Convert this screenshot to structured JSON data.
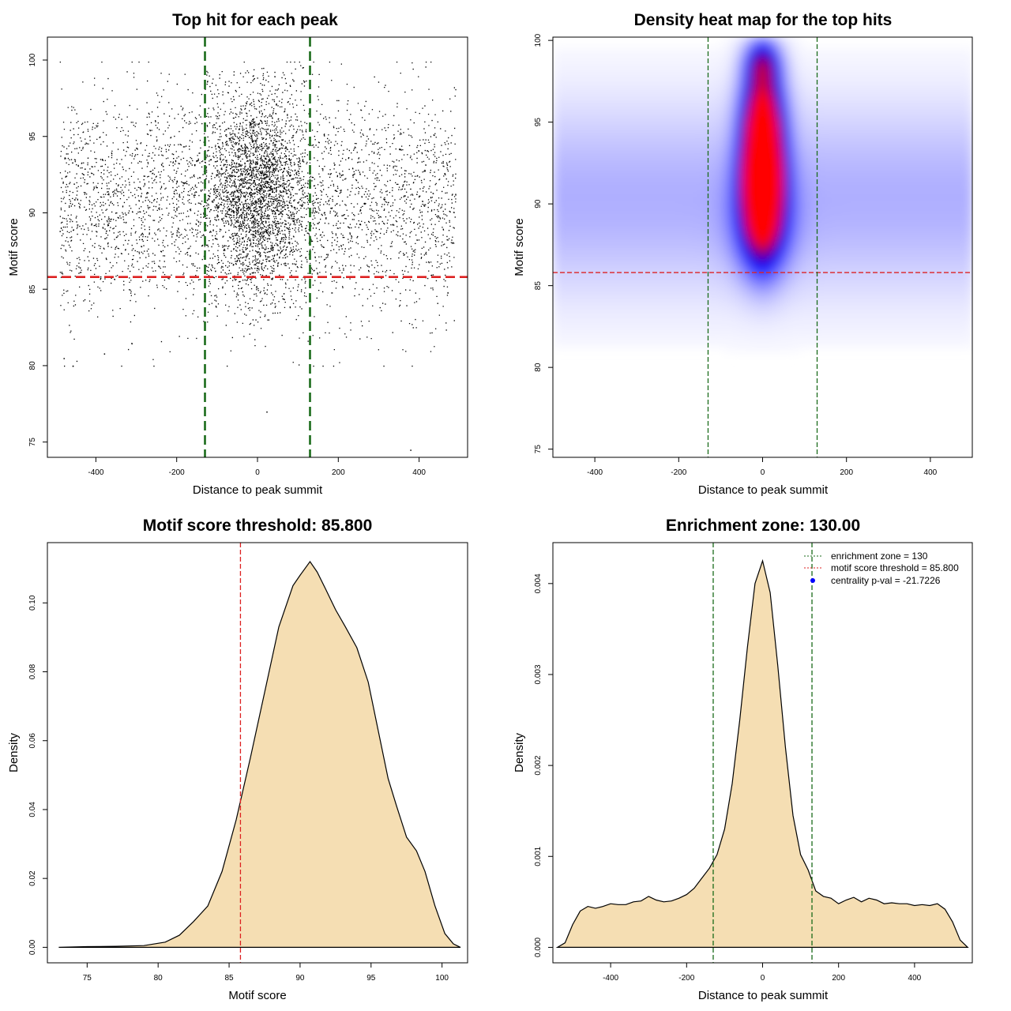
{
  "colors": {
    "threshold_line": "#dd2222",
    "zone_line": "#1a6b1a",
    "density_fill": "#f5deb3",
    "scatter_point": "#000000",
    "heat_low": "#ffffff",
    "heat_mid": "#0000ff",
    "heat_high": "#ff0000",
    "pval_point": "#0000ff"
  },
  "chart_data": [
    {
      "type": "scatter",
      "title": "Top hit for each peak",
      "xlabel": "Distance to peak summit",
      "ylabel": "Motif score",
      "xlim": [
        -520,
        520
      ],
      "ylim": [
        74,
        101.5
      ],
      "xticks": [
        -400,
        -200,
        0,
        200,
        400
      ],
      "yticks": [
        75,
        80,
        85,
        90,
        95,
        100
      ],
      "xtick_labels": [
        "-400",
        "-200",
        "0",
        "200",
        "400"
      ],
      "ytick_labels": [
        "75",
        "80",
        "85",
        "90",
        "95",
        "100"
      ],
      "distribution": {
        "n_background": 3600,
        "n_center": 3800,
        "x_range": [
          -490,
          490
        ],
        "center_sd": 60,
        "score_mean": 90.5,
        "score_sd": 3.6,
        "center_score_mean": 91.5,
        "center_score_sd": 3.2
      },
      "outliers": [
        {
          "x": 22,
          "y": 77
        },
        {
          "x": 378,
          "y": 74.5
        },
        {
          "x": -458,
          "y": 80
        },
        {
          "x": -380,
          "y": 80.8
        },
        {
          "x": -480,
          "y": 80.5
        }
      ],
      "hlines": [
        85.8
      ],
      "vlines": [
        -130,
        130
      ],
      "grid": false
    },
    {
      "type": "heatmap",
      "title": "Density heat map for the top hits",
      "xlabel": "Distance to peak summit",
      "ylabel": "Motif score",
      "xlim": [
        -500,
        500
      ],
      "ylim": [
        74.5,
        100.2
      ],
      "xticks": [
        -400,
        -200,
        0,
        200,
        400
      ],
      "yticks": [
        75,
        80,
        85,
        90,
        95,
        100
      ],
      "xtick_labels": [
        "-400",
        "-200",
        "0",
        "200",
        "400"
      ],
      "ytick_labels": [
        "75",
        "80",
        "85",
        "90",
        "95",
        "100"
      ],
      "hotspots": [
        {
          "x": 0,
          "y": 91.3,
          "sx": 30,
          "sy": 2.6,
          "w": 1.0
        },
        {
          "x": 0,
          "y": 93.5,
          "sx": 32,
          "sy": 2.0,
          "w": 0.55
        },
        {
          "x": 0,
          "y": 98.6,
          "sx": 28,
          "sy": 1.0,
          "w": 0.45
        },
        {
          "x": 0,
          "y": 96.3,
          "sx": 33,
          "sy": 1.4,
          "w": 0.35
        },
        {
          "x": 0,
          "y": 89.0,
          "sx": 45,
          "sy": 2.2,
          "w": 0.3
        }
      ],
      "background_density": {
        "y_center": 90.3,
        "sy": 4.2,
        "level": 0.11
      },
      "hlines": [
        85.8
      ],
      "vlines": [
        -130,
        130
      ],
      "grid": false
    },
    {
      "type": "area",
      "title": "Motif score threshold: 85.800",
      "xlabel": "Motif score",
      "ylabel": "Density",
      "xlim": [
        72.2,
        101.8
      ],
      "ylim": [
        -0.0045,
        0.1175
      ],
      "xticks": [
        75,
        80,
        85,
        90,
        95,
        100
      ],
      "yticks": [
        0.0,
        0.02,
        0.04,
        0.06,
        0.08,
        0.1
      ],
      "xtick_labels": [
        "75",
        "80",
        "85",
        "90",
        "95",
        "100"
      ],
      "ytick_labels": [
        "0.00",
        "0.02",
        "0.04",
        "0.06",
        "0.08",
        "0.10"
      ],
      "x": [
        73.0,
        75.0,
        77.0,
        79.0,
        80.5,
        81.5,
        82.5,
        83.5,
        84.5,
        85.5,
        86.5,
        87.5,
        88.5,
        89.5,
        90.0,
        90.7,
        91.2,
        91.8,
        92.5,
        93.2,
        94.0,
        94.8,
        95.5,
        96.2,
        96.8,
        97.5,
        98.2,
        98.8,
        99.5,
        100.2,
        100.8,
        101.3
      ],
      "y": [
        0.0,
        0.0002,
        0.0003,
        0.0005,
        0.0015,
        0.0035,
        0.0075,
        0.012,
        0.022,
        0.037,
        0.055,
        0.074,
        0.093,
        0.105,
        0.108,
        0.112,
        0.109,
        0.104,
        0.098,
        0.093,
        0.087,
        0.077,
        0.063,
        0.049,
        0.041,
        0.032,
        0.028,
        0.022,
        0.012,
        0.004,
        0.001,
        0.0
      ],
      "vlines": [
        85.8
      ],
      "grid": false
    },
    {
      "type": "area",
      "title": "Enrichment zone: 130.00",
      "xlabel": "Distance to peak summit",
      "ylabel": "Density",
      "xlim": [
        -552,
        552
      ],
      "ylim": [
        -0.00017,
        0.00445
      ],
      "xticks": [
        -400,
        -200,
        0,
        200,
        400
      ],
      "yticks": [
        0.0,
        0.001,
        0.002,
        0.003,
        0.004
      ],
      "xtick_labels": [
        "-400",
        "-200",
        "0",
        "200",
        "400"
      ],
      "ytick_labels": [
        "0.000",
        "0.001",
        "0.002",
        "0.003",
        "0.004"
      ],
      "x": [
        -540,
        -520,
        -500,
        -480,
        -460,
        -440,
        -420,
        -400,
        -380,
        -360,
        -340,
        -320,
        -300,
        -280,
        -260,
        -240,
        -220,
        -200,
        -180,
        -160,
        -140,
        -120,
        -100,
        -80,
        -60,
        -40,
        -20,
        0,
        20,
        40,
        60,
        80,
        100,
        120,
        140,
        160,
        180,
        200,
        220,
        240,
        260,
        280,
        300,
        320,
        340,
        360,
        380,
        400,
        420,
        440,
        460,
        480,
        500,
        520,
        540
      ],
      "y": [
        0.0,
        5e-05,
        0.00025,
        0.0004,
        0.00045,
        0.00043,
        0.00045,
        0.00048,
        0.00047,
        0.00047,
        0.0005,
        0.00051,
        0.00056,
        0.00052,
        0.0005,
        0.00051,
        0.00054,
        0.00058,
        0.00065,
        0.00076,
        0.00087,
        0.00102,
        0.0013,
        0.0018,
        0.0025,
        0.0033,
        0.004,
        0.00425,
        0.0039,
        0.0031,
        0.0022,
        0.00145,
        0.00102,
        0.00085,
        0.00062,
        0.00056,
        0.00054,
        0.00048,
        0.00052,
        0.00055,
        0.0005,
        0.00054,
        0.00052,
        0.00048,
        0.00049,
        0.00048,
        0.00048,
        0.00046,
        0.00047,
        0.00046,
        0.00048,
        0.00042,
        0.00028,
        8e-05,
        0.0
      ],
      "vlines": [
        -130,
        130
      ],
      "legend": {
        "placement": "top-right",
        "entries": [
          {
            "label": "enrichment zone = 130",
            "style": "green-dotted-line"
          },
          {
            "label": "motif score threshold = 85.800",
            "style": "red-dotted-line"
          },
          {
            "label": "centrality p-val = -21.7226",
            "style": "blue-point"
          }
        ]
      },
      "grid": false
    }
  ]
}
